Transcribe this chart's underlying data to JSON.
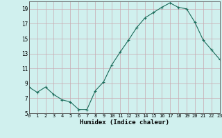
{
  "x": [
    0,
    1,
    2,
    3,
    4,
    5,
    6,
    7,
    8,
    9,
    10,
    11,
    12,
    13,
    14,
    15,
    16,
    17,
    18,
    19,
    20,
    21,
    22,
    23
  ],
  "y": [
    8.5,
    7.8,
    8.5,
    7.5,
    6.8,
    6.5,
    5.5,
    5.5,
    8.0,
    9.2,
    11.5,
    13.2,
    14.8,
    16.5,
    17.8,
    18.5,
    19.2,
    19.8,
    19.2,
    19.0,
    17.2,
    14.8,
    13.5,
    12.2
  ],
  "xlim": [
    0,
    23
  ],
  "ylim": [
    5,
    20
  ],
  "yticks": [
    5,
    7,
    9,
    11,
    13,
    15,
    17,
    19
  ],
  "xticks": [
    0,
    1,
    2,
    3,
    4,
    5,
    6,
    7,
    8,
    9,
    10,
    11,
    12,
    13,
    14,
    15,
    16,
    17,
    18,
    19,
    20,
    21,
    22,
    23
  ],
  "xlabel": "Humidex (Indice chaleur)",
  "line_color": "#1a6b5a",
  "marker": "+",
  "bg_color": "#d0f0ee",
  "grid_color": "#c8a8b0"
}
